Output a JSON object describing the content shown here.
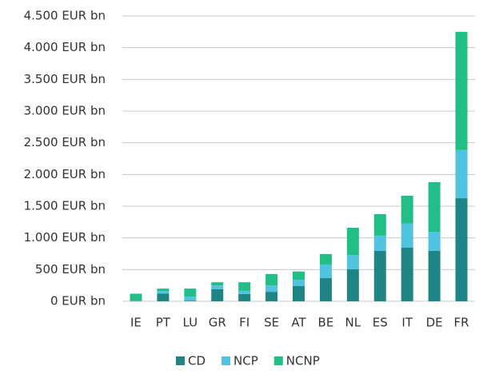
{
  "chart_data": {
    "type": "stacked_bar",
    "categories": [
      "IE",
      "PT",
      "LU",
      "GR",
      "FI",
      "SE",
      "AT",
      "BE",
      "NL",
      "ES",
      "IT",
      "DE",
      "FR"
    ],
    "series": [
      {
        "name": "CD",
        "color": "#1e8485",
        "values": [
          5,
          120,
          10,
          190,
          115,
          150,
          240,
          365,
          505,
          795,
          845,
          795,
          1625
        ]
      },
      {
        "name": "NCP",
        "color": "#4fc3df",
        "values": [
          5,
          40,
          65,
          60,
          50,
          100,
          100,
          215,
          225,
          240,
          380,
          300,
          760
        ]
      },
      {
        "name": "NCNP",
        "color": "#21bf86",
        "values": [
          110,
          40,
          125,
          50,
          135,
          180,
          130,
          165,
          430,
          340,
          440,
          785,
          1865
        ]
      }
    ],
    "ylim": [
      0,
      4500
    ],
    "yticks": [
      {
        "value": 0,
        "label": "0 EUR bn"
      },
      {
        "value": 500,
        "label": "500 EUR bn"
      },
      {
        "value": 1000,
        "label": "1.000 EUR bn"
      },
      {
        "value": 1500,
        "label": "1.500 EUR bn"
      },
      {
        "value": 2000,
        "label": "2.000 EUR bn"
      },
      {
        "value": 2500,
        "label": "2.500 EUR bn"
      },
      {
        "value": 3000,
        "label": "3.000 EUR bn"
      },
      {
        "value": 3500,
        "label": "3.500 EUR bn"
      },
      {
        "value": 4000,
        "label": "4.000 EUR bn"
      },
      {
        "value": 4500,
        "label": "4.500 EUR bn"
      }
    ],
    "grid": true,
    "legend": "bottom"
  }
}
